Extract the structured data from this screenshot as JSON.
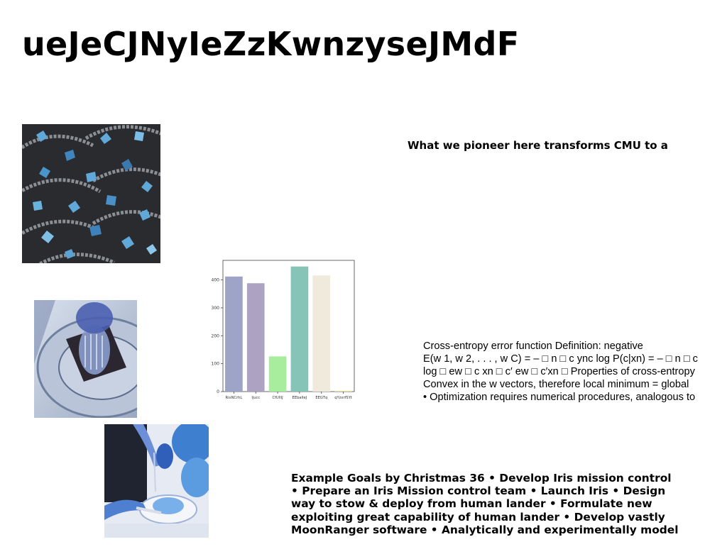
{
  "slide": {
    "title": "ueJeCJNyIeZzKwnzyseJMdF",
    "headline": "What we pioneer here transforms CMU to a",
    "cross_entropy_lines": [
      "Cross-entropy error function Definition: negative",
      "E(w 1, w 2, . . . , w C) = – □ n □ c ync log P(c|xn) = – □ n □ c",
      "log □ ew □ c xn □ c′ ew □ c′xn □ Properties of cross-entropy",
      "Convex in the w vectors, therefore local minimum = global",
      "• Optimization requires numerical procedures, analogous to"
    ],
    "goals_lines": [
      "Example Goals by Christmas 36 • Develop Iris mission control",
      "• Prepare an Iris Mission control team • Launch Iris • Design",
      "way to stow & deploy from human lander • Formulate new",
      "exploiting great capability of human lander • Develop vastly",
      "MoonRanger software • Analytically and experimentally model"
    ]
  },
  "images": [
    {
      "subject": "blue-petals-on-cobblestone"
    },
    {
      "subject": "blue-toned-glass-object"
    },
    {
      "subject": "blue-toned-hands-cutting-food"
    }
  ],
  "chart_data": {
    "type": "bar",
    "categories": [
      "RixNCrhL",
      "ljucc",
      "CfUIllJ",
      "EEbaIleJ",
      "EEGTq",
      "qYzxrfSYt"
    ],
    "values": [
      412,
      388,
      126,
      448,
      416,
      3
    ],
    "colors": [
      "#9ea3c8",
      "#ada2c1",
      "#a8ec9e",
      "#86c4b8",
      "#f0eadc",
      "#e8e6a0"
    ],
    "yticks": [
      0,
      100,
      200,
      300,
      400
    ],
    "ylim": [
      0,
      470
    ],
    "title": "",
    "xlabel": "",
    "ylabel": "",
    "grid": false
  }
}
